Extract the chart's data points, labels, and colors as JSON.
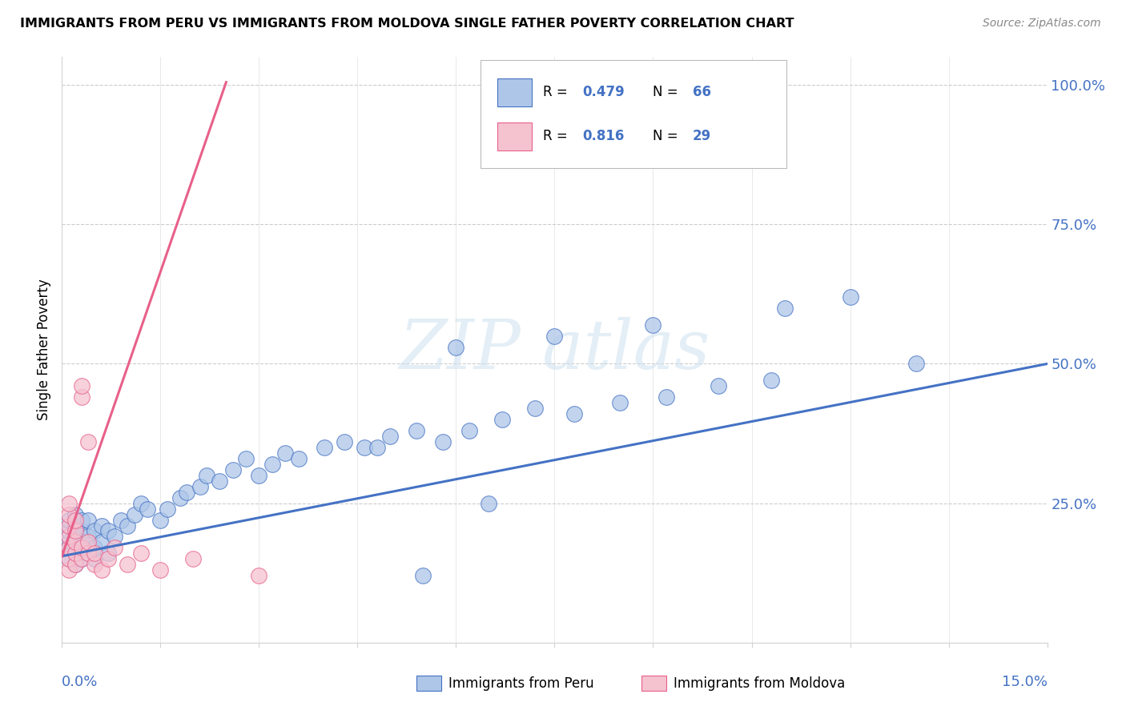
{
  "title": "IMMIGRANTS FROM PERU VS IMMIGRANTS FROM MOLDOVA SINGLE FATHER POVERTY CORRELATION CHART",
  "source": "Source: ZipAtlas.com",
  "ylabel": "Single Father Poverty",
  "xlim": [
    0.0,
    0.15
  ],
  "ylim": [
    0.0,
    1.05
  ],
  "ytick_vals": [
    0.0,
    0.25,
    0.5,
    0.75,
    1.0
  ],
  "ytick_labels": [
    "",
    "25.0%",
    "50.0%",
    "75.0%",
    "100.0%"
  ],
  "blue_fill": "#aec6e8",
  "blue_edge": "#4472c4",
  "pink_fill": "#f5c2d0",
  "pink_edge": "#e8608a",
  "blue_line": "#4472c4",
  "pink_line": "#e8608a",
  "grid_color": "#cccccc",
  "peru_x": [
    0.001,
    0.001,
    0.001,
    0.001,
    0.001,
    0.002,
    0.002,
    0.002,
    0.002,
    0.002,
    0.003,
    0.003,
    0.003,
    0.003,
    0.004,
    0.004,
    0.004,
    0.005,
    0.005,
    0.005,
    0.006,
    0.006,
    0.007,
    0.007,
    0.008,
    0.009,
    0.01,
    0.011,
    0.012,
    0.013,
    0.015,
    0.016,
    0.018,
    0.019,
    0.021,
    0.022,
    0.024,
    0.026,
    0.028,
    0.03,
    0.032,
    0.034,
    0.036,
    0.04,
    0.043,
    0.046,
    0.05,
    0.054,
    0.058,
    0.062,
    0.067,
    0.072,
    0.078,
    0.085,
    0.092,
    0.1,
    0.108,
    0.06,
    0.075,
    0.09,
    0.11,
    0.12,
    0.13,
    0.048,
    0.055,
    0.065
  ],
  "peru_y": [
    0.15,
    0.18,
    0.2,
    0.22,
    0.17,
    0.14,
    0.16,
    0.19,
    0.21,
    0.23,
    0.15,
    0.18,
    0.2,
    0.22,
    0.16,
    0.19,
    0.22,
    0.15,
    0.17,
    0.2,
    0.18,
    0.21,
    0.16,
    0.2,
    0.19,
    0.22,
    0.21,
    0.23,
    0.25,
    0.24,
    0.22,
    0.24,
    0.26,
    0.27,
    0.28,
    0.3,
    0.29,
    0.31,
    0.33,
    0.3,
    0.32,
    0.34,
    0.33,
    0.35,
    0.36,
    0.35,
    0.37,
    0.38,
    0.36,
    0.38,
    0.4,
    0.42,
    0.41,
    0.43,
    0.44,
    0.46,
    0.47,
    0.53,
    0.55,
    0.57,
    0.6,
    0.62,
    0.5,
    0.35,
    0.12,
    0.25
  ],
  "moldova_x": [
    0.001,
    0.001,
    0.001,
    0.001,
    0.001,
    0.001,
    0.001,
    0.002,
    0.002,
    0.002,
    0.002,
    0.002,
    0.003,
    0.003,
    0.003,
    0.003,
    0.004,
    0.004,
    0.004,
    0.005,
    0.005,
    0.006,
    0.007,
    0.008,
    0.01,
    0.012,
    0.015,
    0.02,
    0.03
  ],
  "moldova_y": [
    0.13,
    0.15,
    0.17,
    0.19,
    0.21,
    0.23,
    0.25,
    0.14,
    0.16,
    0.18,
    0.2,
    0.22,
    0.15,
    0.17,
    0.44,
    0.46,
    0.16,
    0.18,
    0.36,
    0.14,
    0.16,
    0.13,
    0.15,
    0.17,
    0.14,
    0.16,
    0.13,
    0.15,
    0.12
  ],
  "peru_line_x": [
    0.0,
    0.15
  ],
  "peru_line_y": [
    0.155,
    0.5
  ],
  "moldova_line_x0": 0.0,
  "moldova_line_x1": 0.04
}
